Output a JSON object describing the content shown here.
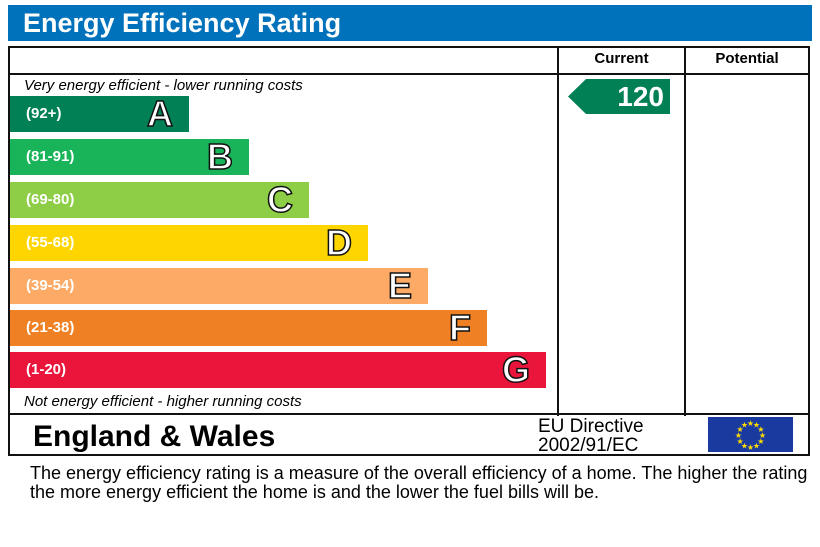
{
  "title": "Energy Efficiency Rating",
  "columns": {
    "current": "Current",
    "potential": "Potential"
  },
  "top_note": "Very energy efficient - lower running costs",
  "bottom_note": "Not energy efficient - higher running costs",
  "chart_data": {
    "type": "bar",
    "title": "Energy Efficiency Rating",
    "categories": [
      "A",
      "B",
      "C",
      "D",
      "E",
      "F",
      "G"
    ],
    "ranges": [
      "(92+)",
      "(81-91)",
      "(69-80)",
      "(55-68)",
      "(39-54)",
      "(21-38)",
      "(1-20)"
    ],
    "colors": [
      "#008054",
      "#19b459",
      "#8dce46",
      "#ffd500",
      "#fcaa65",
      "#ef8023",
      "#e9153b"
    ],
    "current": {
      "value": "120",
      "band": "A",
      "color": "#008054"
    },
    "potential": null
  },
  "footer": {
    "region": "England & Wales",
    "directive_line1": "EU Directive",
    "directive_line2": "2002/91/EC",
    "flag_icon": "eu-flag-icon"
  },
  "description": "The energy efficiency rating is a measure of the overall efficiency of a home.  The higher the rating the more energy efficient the home is and the lower the fuel bills will be."
}
